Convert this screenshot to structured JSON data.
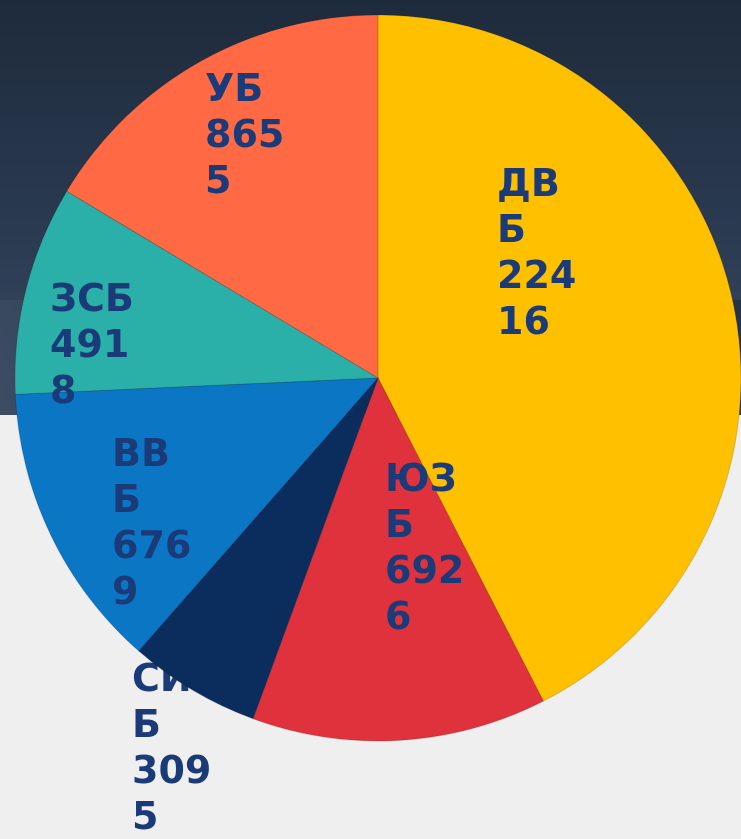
{
  "chart_data": {
    "type": "pie",
    "categories": [
      "ДВБ",
      "ЮЗБ",
      "СИБ",
      "ВВБ",
      "ЗСБ",
      "УБ"
    ],
    "values": [
      22416,
      6926,
      3095,
      6769,
      4918,
      8655
    ],
    "colors": [
      "#ffc000",
      "#e0323c",
      "#0b2d5e",
      "#0a76c4",
      "#2ab0a8",
      "#ff6a45"
    ]
  }
}
